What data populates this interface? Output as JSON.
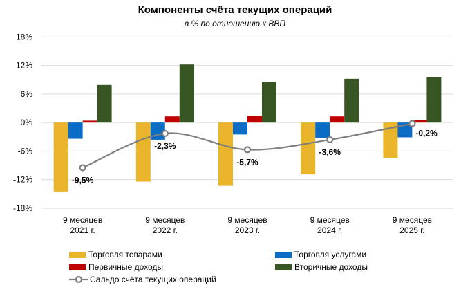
{
  "chart_data": {
    "type": "bar",
    "title": "Компоненты счёта текущих операций",
    "subtitle": "в % по отношению к ВВП",
    "categories": [
      [
        "9 месяцев",
        "2021 г."
      ],
      [
        "9 месяцев",
        "2022 г."
      ],
      [
        "9 месяцев",
        "2023 г."
      ],
      [
        "9 месяцев",
        "2024 г."
      ],
      [
        "9 месяцев",
        "2025 г."
      ]
    ],
    "ylim": [
      -18,
      18
    ],
    "yticks": [
      18,
      12,
      6,
      0,
      -6,
      -12,
      -18
    ],
    "ytick_labels": [
      "18%",
      "12%",
      "6%",
      "0%",
      "-6%",
      "-12%",
      "-18%"
    ],
    "grid": true,
    "legend_position": "bottom",
    "series": [
      {
        "name": "Торговля товарами",
        "type": "bar",
        "color": "#E9B62B",
        "values": [
          -14.5,
          -12.4,
          -13.3,
          -10.9,
          -7.4
        ]
      },
      {
        "name": "Торговля услугами",
        "type": "bar",
        "color": "#0A6CC4",
        "values": [
          -3.4,
          -3.6,
          -2.5,
          -3.3,
          -3.1
        ]
      },
      {
        "name": "Первичные доходы",
        "type": "bar",
        "color": "#C00000",
        "values": [
          0.4,
          1.3,
          1.4,
          1.3,
          0.5
        ]
      },
      {
        "name": "Вторичные доходы",
        "type": "bar",
        "color": "#375623",
        "values": [
          7.9,
          12.2,
          8.5,
          9.2,
          9.5
        ]
      },
      {
        "name": "Сальдо счёта текущих операций",
        "type": "line",
        "color": "#7F7F7F",
        "values": [
          -9.5,
          -2.3,
          -5.7,
          -3.6,
          -0.2
        ],
        "data_labels": [
          "-9,5%",
          "-2,3%",
          "-5,7%",
          "-3,6%",
          "-0,2%"
        ]
      }
    ]
  }
}
